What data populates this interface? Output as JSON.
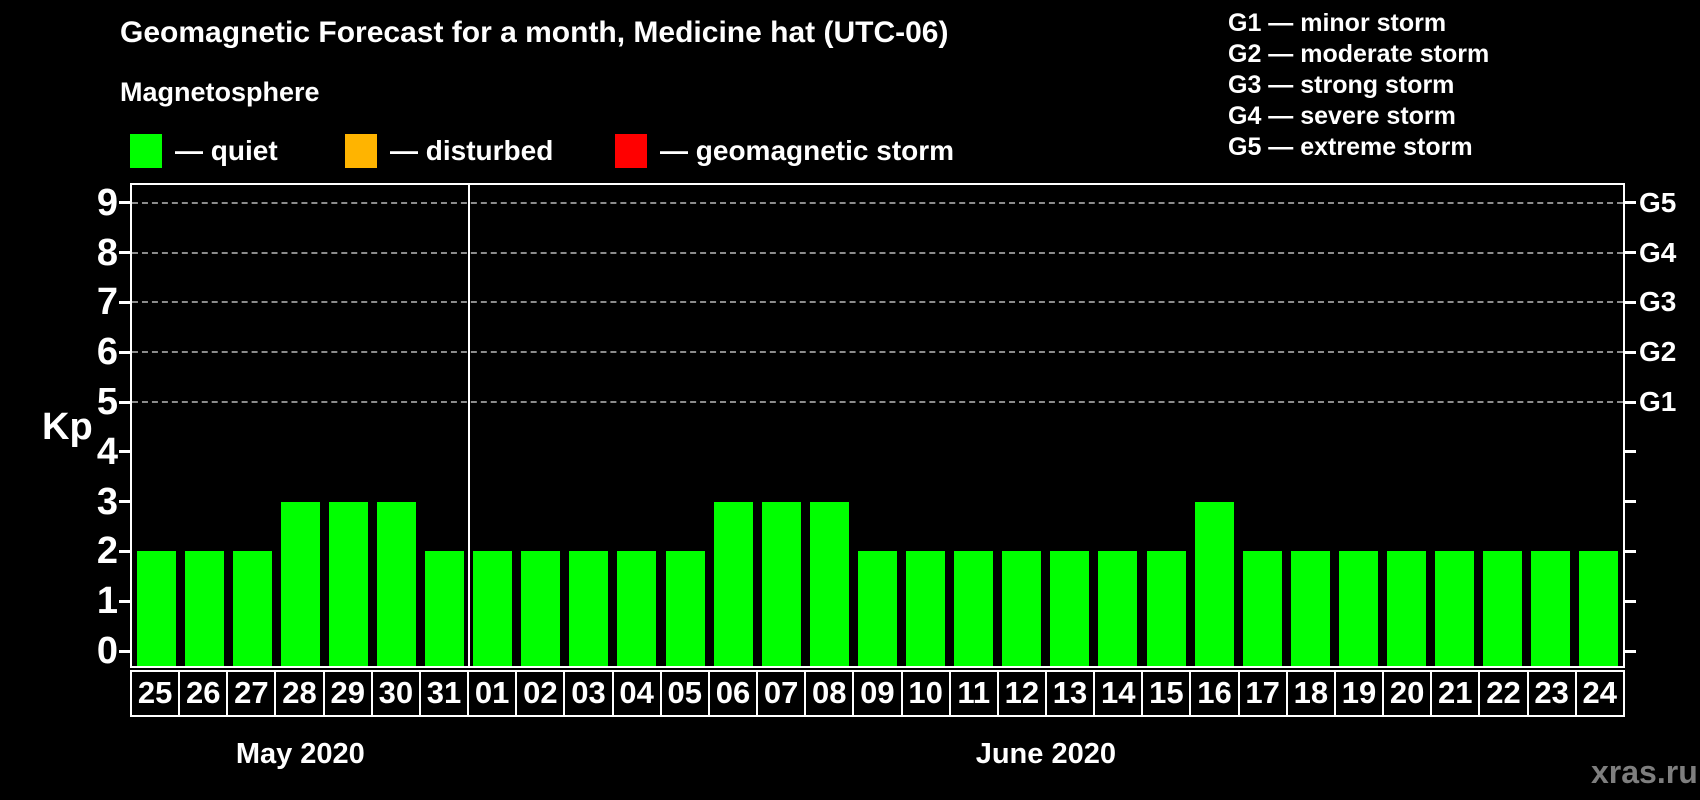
{
  "title": "Geomagnetic Forecast for a month, Medicine hat (UTC-06)",
  "subtitle": "Magnetosphere",
  "legend": {
    "items": [
      {
        "label": "— quiet",
        "color": "#00ff00"
      },
      {
        "label": "— disturbed",
        "color": "#ffb400"
      },
      {
        "label": "— geomagnetic storm",
        "color": "#ff0000"
      }
    ]
  },
  "storm_scale_legend": [
    "G1 — minor storm",
    "G2 — moderate storm",
    "G3 — strong storm",
    "G4 — severe storm",
    "G5 — extreme storm"
  ],
  "watermark": "xras.ru",
  "chart_data": {
    "type": "bar",
    "title": "Geomagnetic Forecast for a month, Medicine hat (UTC-06)",
    "ylabel": "Kp",
    "xlabel": "",
    "ylim": [
      0,
      9.4
    ],
    "yticks": [
      0,
      1,
      2,
      3,
      4,
      5,
      6,
      7,
      8,
      9
    ],
    "gridline_values": [
      5,
      6,
      7,
      8,
      9
    ],
    "grid": "dashed horizontal at Kp 5-9 only",
    "legend_position": "top",
    "right_axis_labels": [
      {
        "value": 9,
        "label": "G5"
      },
      {
        "value": 8,
        "label": "G4"
      },
      {
        "value": 7,
        "label": "G3"
      },
      {
        "value": 6,
        "label": "G2"
      },
      {
        "value": 5,
        "label": "G1"
      }
    ],
    "categories": [
      "25",
      "26",
      "27",
      "28",
      "29",
      "30",
      "31",
      "01",
      "02",
      "03",
      "04",
      "05",
      "06",
      "07",
      "08",
      "09",
      "10",
      "11",
      "12",
      "13",
      "14",
      "15",
      "16",
      "17",
      "18",
      "19",
      "20",
      "21",
      "22",
      "23",
      "24"
    ],
    "values": [
      2,
      2,
      2,
      3,
      3,
      3,
      2,
      2,
      2,
      2,
      2,
      2,
      3,
      3,
      3,
      2,
      2,
      2,
      2,
      2,
      2,
      2,
      3,
      2,
      2,
      2,
      2,
      2,
      2,
      2,
      2
    ],
    "months": [
      {
        "label": "May 2020",
        "days": 7
      },
      {
        "label": "June 2020",
        "days": 24
      }
    ],
    "color_rule": {
      "quiet_max_kp": 3,
      "disturbed_kp": 4,
      "storm_min_kp": 5
    }
  }
}
